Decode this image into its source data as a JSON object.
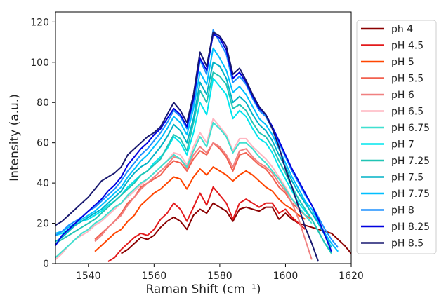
{
  "chart_data": {
    "type": "line",
    "title": "",
    "xlabel": "Raman Shift (cm⁻¹)",
    "ylabel": "Intensity (a.u.)",
    "xlim": [
      1530,
      1620
    ],
    "ylim": [
      0,
      125
    ],
    "xticks": [
      1540,
      1560,
      1580,
      1600,
      1620
    ],
    "yticks": [
      0,
      20,
      40,
      60,
      80,
      100,
      120
    ],
    "grid": false,
    "legend_position": "right",
    "x": [
      1530,
      1532,
      1534,
      1536,
      1538,
      1540,
      1542,
      1544,
      1546,
      1548,
      1550,
      1552,
      1554,
      1556,
      1558,
      1560,
      1562,
      1564,
      1566,
      1568,
      1570,
      1572,
      1574,
      1576,
      1578,
      1580,
      1582,
      1584,
      1586,
      1588,
      1590,
      1592,
      1594,
      1596,
      1598,
      1600,
      1602,
      1604,
      1606,
      1608,
      1610,
      1612,
      1614,
      1616,
      1618,
      1620
    ],
    "series": [
      {
        "name": "ph 4",
        "color": "#8b0000",
        "values": [
          null,
          null,
          null,
          null,
          null,
          null,
          null,
          null,
          null,
          null,
          5,
          7,
          10,
          13,
          12,
          14,
          18,
          21,
          23,
          21,
          17,
          24,
          27,
          25,
          30,
          28,
          26,
          21,
          27,
          28,
          27,
          26,
          28,
          28,
          22,
          25,
          22,
          20,
          19,
          18,
          17,
          16,
          15,
          12,
          9,
          5
        ]
      },
      {
        "name": "pH 4.5",
        "color": "#e31a1c",
        "values": [
          null,
          null,
          null,
          null,
          null,
          null,
          null,
          null,
          1,
          3,
          7,
          10,
          13,
          15,
          14,
          17,
          22,
          25,
          30,
          27,
          21,
          28,
          35,
          29,
          38,
          34,
          30,
          22,
          30,
          32,
          30,
          28,
          30,
          30,
          25,
          27,
          23,
          20,
          17,
          null,
          null,
          null,
          null,
          null,
          null,
          null
        ]
      },
      {
        "name": "pH 5",
        "color": "#ff4500",
        "values": [
          null,
          null,
          null,
          null,
          null,
          null,
          6,
          9,
          12,
          15,
          17,
          21,
          24,
          29,
          32,
          35,
          37,
          40,
          43,
          42,
          37,
          43,
          47,
          44,
          48,
          46,
          44,
          41,
          44,
          46,
          44,
          41,
          38,
          36,
          32,
          29,
          27,
          24,
          22,
          null,
          null,
          null,
          null,
          null,
          null,
          null
        ]
      },
      {
        "name": "pH 5.5",
        "color": "#f2604f",
        "values": [
          null,
          null,
          null,
          null,
          null,
          null,
          12,
          15,
          18,
          21,
          25,
          30,
          33,
          38,
          40,
          42,
          44,
          48,
          51,
          50,
          46,
          52,
          56,
          54,
          60,
          57,
          53,
          46,
          54,
          55,
          52,
          49,
          47,
          43,
          38,
          35,
          30,
          27,
          24,
          22,
          null,
          null,
          null,
          null,
          null,
          null
        ]
      },
      {
        "name": "pH 6",
        "color": "#f08080",
        "values": [
          null,
          null,
          null,
          null,
          null,
          null,
          11,
          14,
          18,
          21,
          24,
          29,
          33,
          37,
          40,
          43,
          46,
          49,
          53,
          52,
          47,
          54,
          58,
          55,
          60,
          58,
          54,
          48,
          56,
          57,
          53,
          50,
          48,
          45,
          40,
          36,
          30,
          22,
          12,
          2,
          null,
          null,
          null,
          null,
          null,
          null
        ]
      },
      {
        "name": "pH 6.5",
        "color": "#ffb6c1",
        "values": [
          2,
          5,
          9,
          12,
          14,
          16,
          19,
          21,
          24,
          27,
          30,
          33,
          36,
          39,
          42,
          45,
          48,
          51,
          55,
          54,
          49,
          58,
          65,
          60,
          72,
          68,
          64,
          56,
          62,
          62,
          58,
          55,
          52,
          48,
          43,
          38,
          32,
          27,
          null,
          null,
          null,
          null,
          null,
          null,
          null,
          null
        ]
      },
      {
        "name": "pH 6.75",
        "color": "#40e0d0",
        "values": [
          3,
          6,
          9,
          12,
          15,
          17,
          20,
          22,
          25,
          28,
          30,
          34,
          37,
          40,
          42,
          45,
          48,
          51,
          54,
          52,
          48,
          56,
          63,
          58,
          70,
          67,
          63,
          55,
          60,
          60,
          57,
          53,
          50,
          46,
          42,
          37,
          32,
          28,
          24,
          20,
          null,
          null,
          null,
          null,
          null,
          null
        ]
      },
      {
        "name": "pH 7",
        "color": "#00e5ee",
        "values": [
          14,
          15,
          17,
          19,
          21,
          22,
          24,
          26,
          29,
          31,
          34,
          38,
          41,
          44,
          46,
          50,
          53,
          57,
          63,
          60,
          54,
          65,
          80,
          74,
          92,
          88,
          84,
          72,
          76,
          73,
          67,
          62,
          60,
          55,
          48,
          42,
          36,
          30,
          26,
          22,
          16,
          10,
          6,
          null,
          null,
          null
        ]
      },
      {
        "name": "pH 7.25",
        "color": "#20c4b4",
        "values": [
          10,
          12,
          14,
          16,
          18,
          20,
          22,
          25,
          28,
          31,
          34,
          37,
          40,
          44,
          46,
          49,
          52,
          58,
          64,
          62,
          56,
          70,
          86,
          80,
          95,
          93,
          89,
          77,
          79,
          76,
          70,
          65,
          63,
          58,
          51,
          45,
          38,
          32,
          27,
          22,
          16,
          10,
          5,
          null,
          null,
          null
        ]
      },
      {
        "name": "pH 7.5",
        "color": "#00b2c6",
        "values": [
          11,
          13,
          16,
          19,
          21,
          23,
          25,
          27,
          30,
          33,
          36,
          41,
          45,
          48,
          50,
          54,
          58,
          63,
          69,
          66,
          60,
          72,
          90,
          84,
          100,
          98,
          92,
          80,
          83,
          80,
          74,
          69,
          66,
          61,
          54,
          48,
          41,
          35,
          30,
          25,
          20,
          14,
          8,
          null,
          null,
          null
        ]
      },
      {
        "name": "pH 7.75",
        "color": "#00bfff",
        "values": [
          15,
          16,
          18,
          20,
          22,
          24,
          26,
          29,
          32,
          35,
          38,
          43,
          47,
          51,
          54,
          58,
          62,
          67,
          73,
          70,
          64,
          77,
          95,
          89,
          107,
          102,
          96,
          85,
          88,
          84,
          78,
          72,
          69,
          64,
          57,
          50,
          43,
          37,
          31,
          27,
          21,
          15,
          10,
          6,
          null,
          null
        ]
      },
      {
        "name": "pH 8",
        "color": "#1e90ff",
        "values": [
          14,
          16,
          19,
          21,
          23,
          26,
          28,
          31,
          34,
          37,
          41,
          46,
          50,
          54,
          57,
          61,
          65,
          70,
          76,
          73,
          67,
          80,
          101,
          94,
          116,
          110,
          104,
          90,
          93,
          89,
          82,
          76,
          73,
          67,
          60,
          53,
          46,
          40,
          34,
          29,
          23,
          17,
          12,
          8,
          null,
          null
        ]
      },
      {
        "name": "pH 8.25",
        "color": "#0000e0",
        "values": [
          9,
          14,
          17,
          20,
          23,
          26,
          29,
          32,
          36,
          39,
          43,
          49,
          53,
          57,
          60,
          64,
          67,
          72,
          77,
          74,
          68,
          82,
          102,
          96,
          114,
          112,
          106,
          92,
          95,
          90,
          83,
          77,
          74,
          68,
          61,
          54,
          47,
          41,
          35,
          29,
          22,
          14,
          6,
          null,
          null,
          null
        ]
      },
      {
        "name": "pH 8.5",
        "color": "#191970",
        "values": [
          19,
          21,
          24,
          27,
          30,
          33,
          37,
          41,
          43,
          45,
          48,
          54,
          57,
          60,
          63,
          65,
          68,
          74,
          80,
          76,
          70,
          84,
          105,
          98,
          115,
          113,
          108,
          94,
          97,
          91,
          84,
          78,
          74,
          67,
          58,
          47,
          38,
          28,
          18,
          10,
          1,
          null,
          null,
          null,
          null,
          null
        ]
      }
    ]
  }
}
